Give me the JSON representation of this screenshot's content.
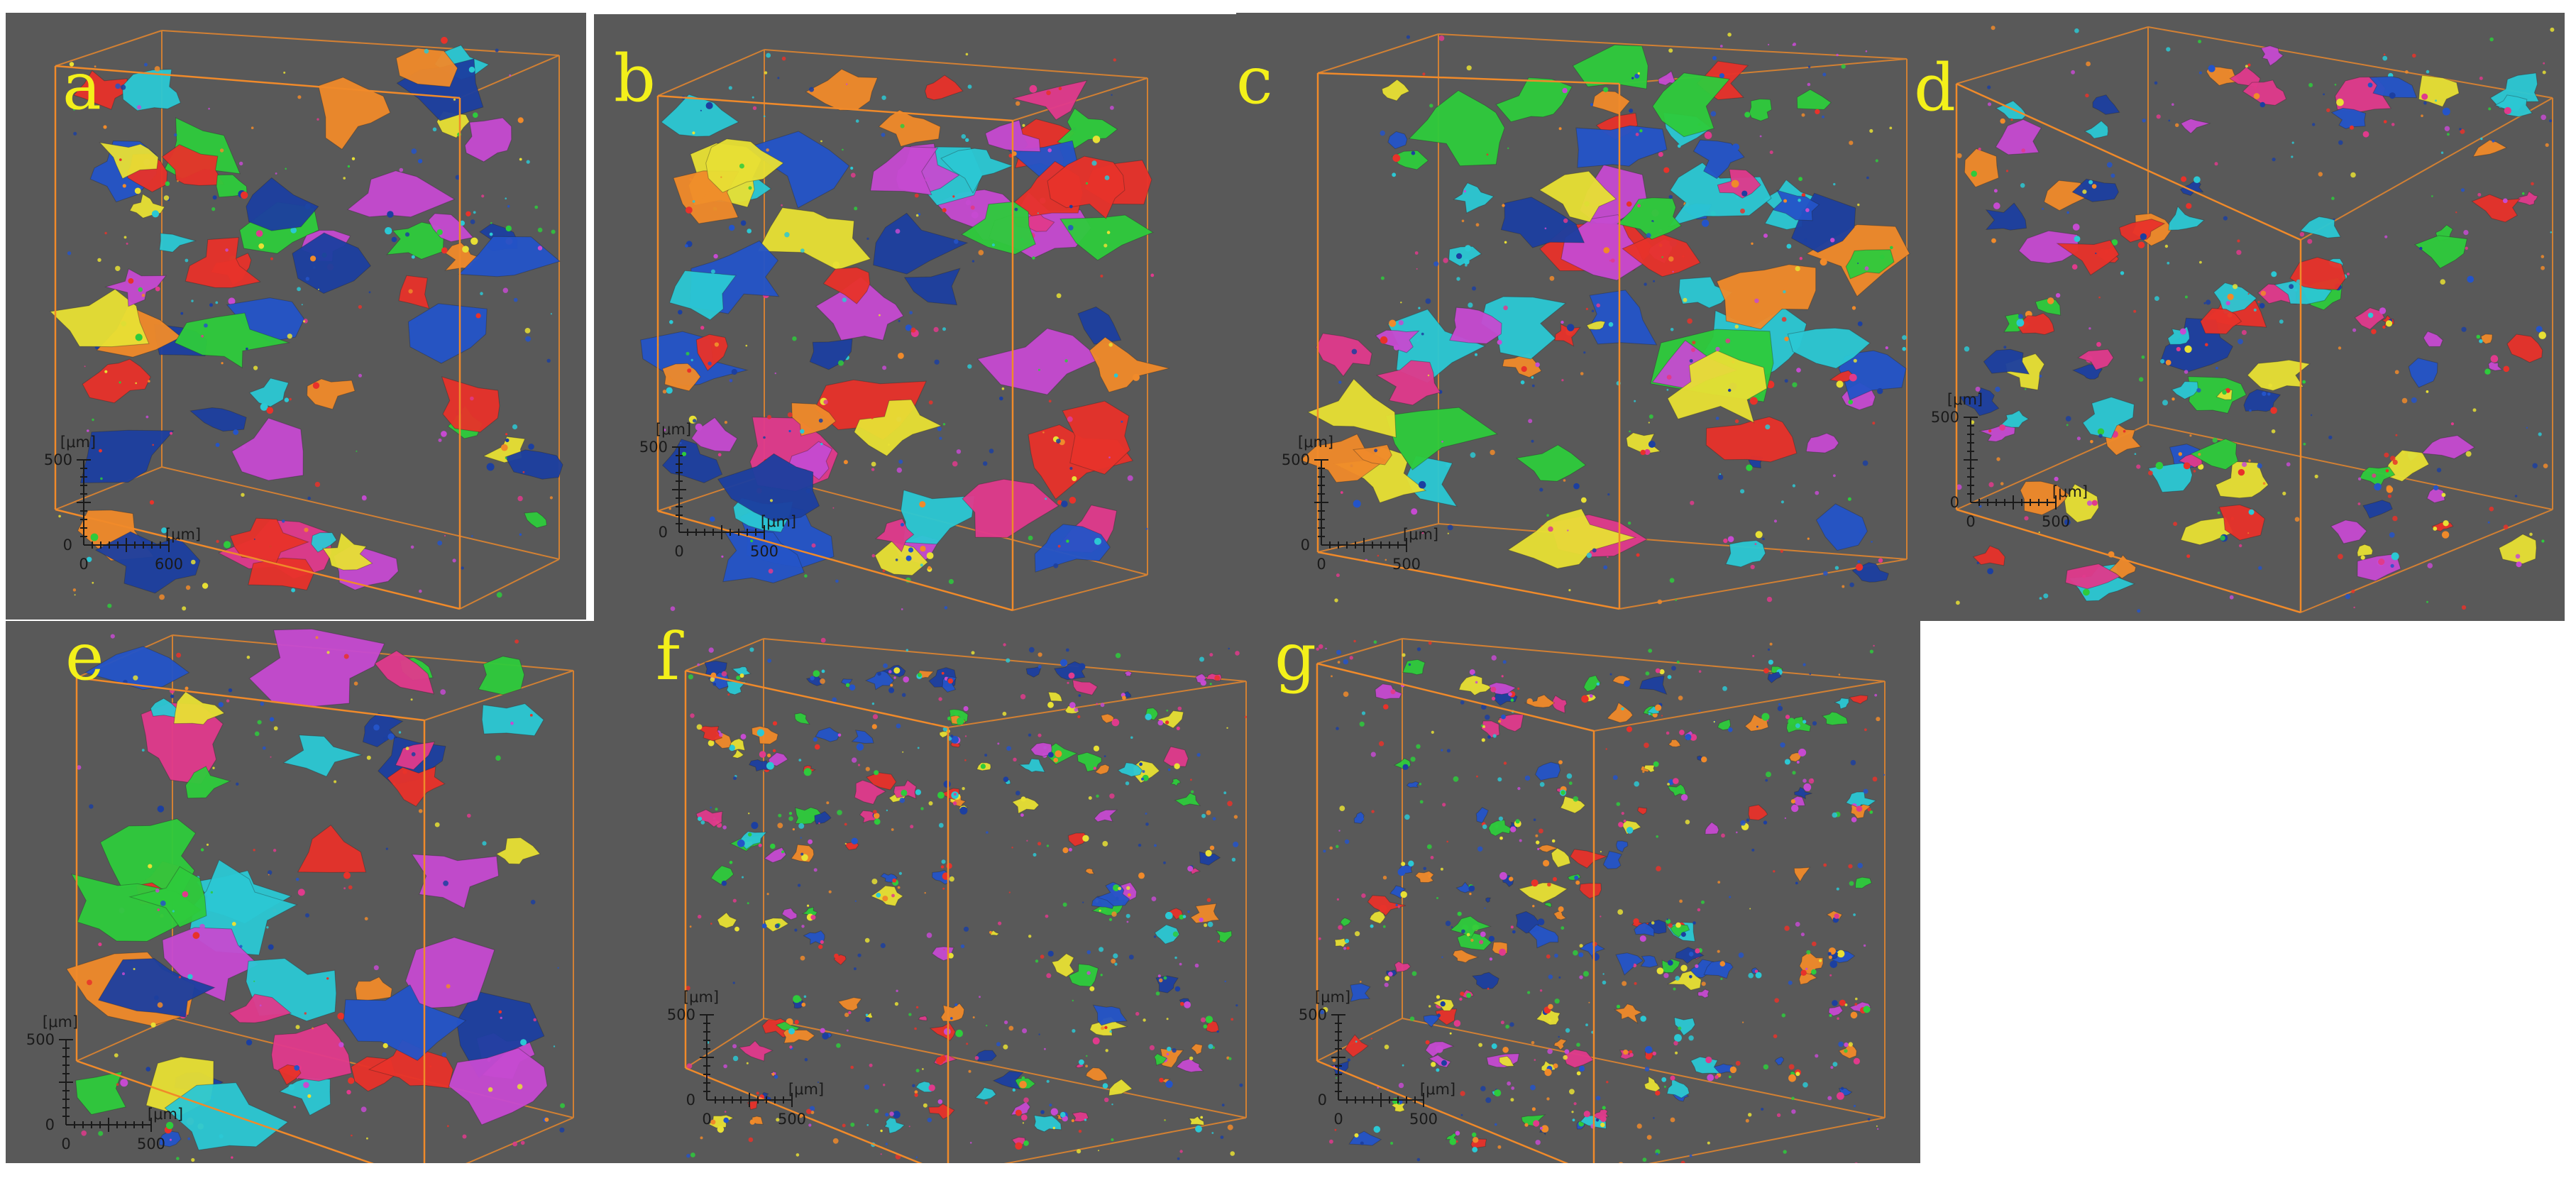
{
  "figure": {
    "panels": [
      {
        "id": "a",
        "label": "a",
        "scale": {
          "unit_y": "[μm]",
          "unit_x": "[μm]",
          "y_max": "500",
          "x_max": "600",
          "origin_y": "0",
          "origin_x": "0"
        }
      },
      {
        "id": "b",
        "label": "b",
        "scale": {
          "unit_y": "[μm]",
          "unit_x": "[μm]",
          "y_max": "500",
          "x_max": "500",
          "origin_y": "0",
          "origin_x": "0"
        }
      },
      {
        "id": "c",
        "label": "c",
        "scale": {
          "unit_y": "[μm]",
          "unit_x": "[μm]",
          "y_max": "500",
          "x_max": "500",
          "origin_y": "0",
          "origin_x": "0"
        }
      },
      {
        "id": "d",
        "label": "d",
        "scale": {
          "unit_y": "[μm]",
          "unit_x": "[μm]",
          "y_max": "500",
          "x_max": "500",
          "origin_y": "0",
          "origin_x": "0"
        }
      },
      {
        "id": "e",
        "label": "e",
        "scale": {
          "unit_y": "[μm]",
          "unit_x": "[μm]",
          "y_max": "500",
          "x_max": "500",
          "origin_y": "0",
          "origin_x": "0"
        }
      },
      {
        "id": "f",
        "label": "f",
        "scale": {
          "unit_y": "[μm]",
          "unit_x": "[μm]",
          "y_max": "500",
          "x_max": "500",
          "origin_y": "0",
          "origin_x": "0"
        }
      },
      {
        "id": "g",
        "label": "g",
        "scale": {
          "unit_y": "[μm]",
          "unit_x": "[μm]",
          "y_max": "500",
          "x_max": "500",
          "origin_y": "0",
          "origin_x": "0"
        }
      }
    ],
    "colors": {
      "background": "#595959",
      "box_edges": "#f08a2a",
      "label": "#f3f01a",
      "pore_palette": [
        "#2454c8",
        "#1c3fa0",
        "#e03a8c",
        "#c64ad1",
        "#2bc8d4",
        "#e8e034",
        "#2ecb3c",
        "#e8322a",
        "#f08a2a"
      ]
    }
  }
}
